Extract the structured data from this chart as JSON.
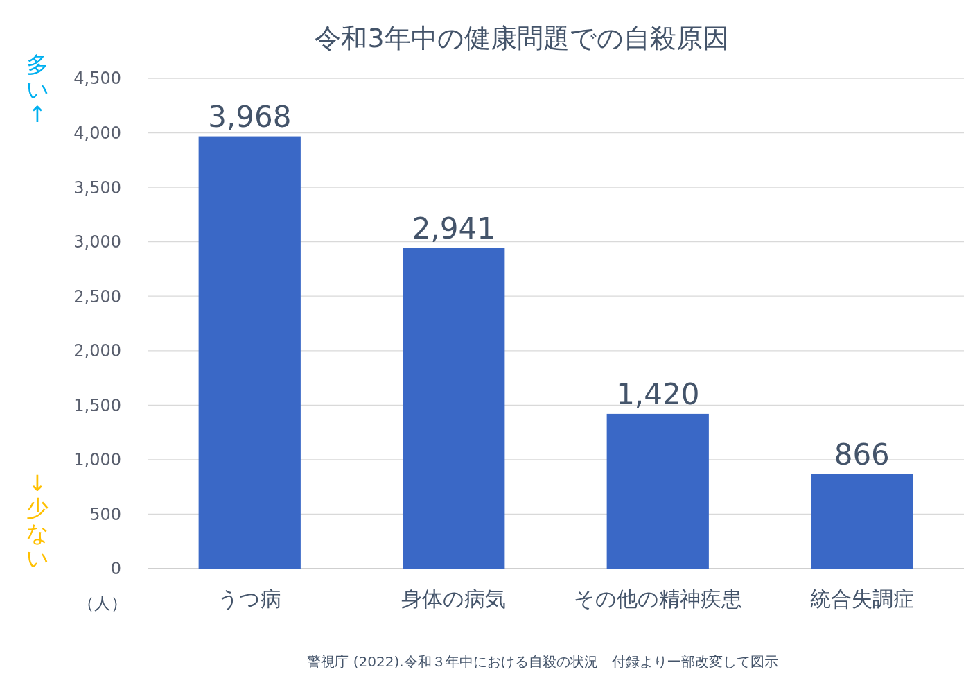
{
  "chart_data": {
    "type": "bar",
    "title": "令和3年中の健康問題での自殺原因",
    "ylabel": "（人）",
    "categories": [
      "うつ病",
      "身体の病気",
      "その他の精神疾患",
      "統合失調症"
    ],
    "values": [
      3968,
      2941,
      1420,
      866
    ],
    "color": "#3a68c6",
    "ylim": [
      0,
      4500
    ],
    "yticks": [
      {
        "value": 0,
        "label": "0"
      },
      {
        "value": 500,
        "label": "500"
      },
      {
        "value": 1000,
        "label": "1,000"
      },
      {
        "value": 1500,
        "label": "1,500"
      },
      {
        "value": 2000,
        "label": "2,000"
      },
      {
        "value": 2500,
        "label": "2,500"
      },
      {
        "value": 3000,
        "label": "3,000"
      },
      {
        "value": 3500,
        "label": "3,500"
      },
      {
        "value": 4000,
        "label": "4,000"
      },
      {
        "value": 4500,
        "label": "4,500"
      }
    ],
    "grid": "y",
    "value_labels": [
      "3,968",
      "2,941",
      "1,420",
      "866"
    ],
    "annotations": [
      "多い↑",
      "↓少ない",
      "警視庁 (2022).令和３年中における自殺の状況　付録より一部改変して図示"
    ]
  }
}
